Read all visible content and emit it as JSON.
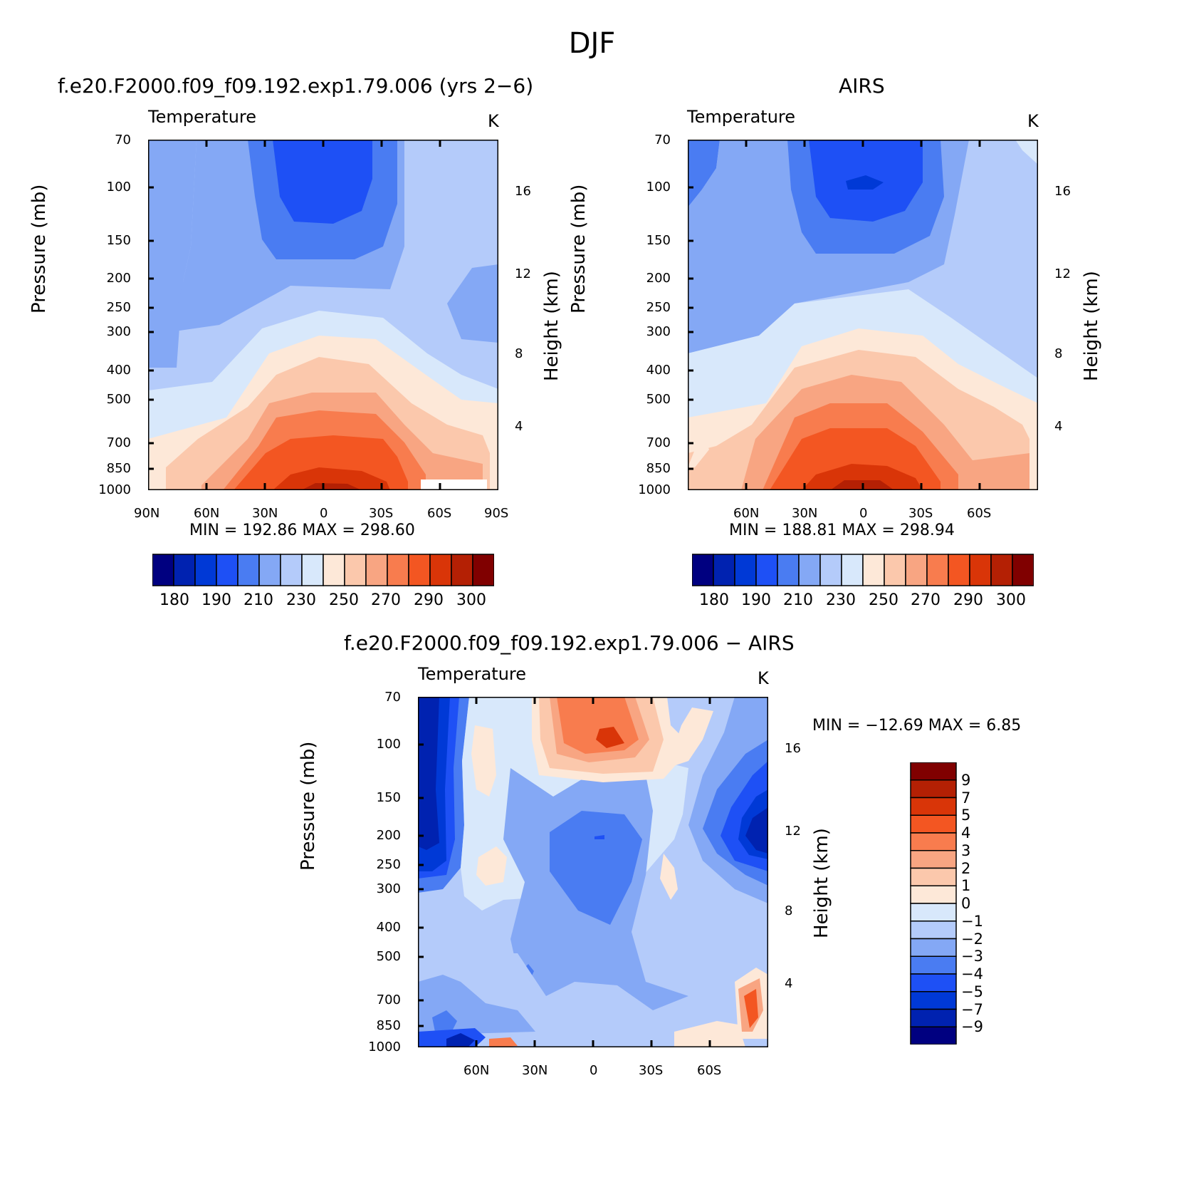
{
  "title": "DJF",
  "panels": [
    {
      "id": "model",
      "title": "f.e20.F2000.f09_f09.192.exp1.79.006 (yrs 2−6)",
      "subtitle": "Temperature",
      "units": "K",
      "min_max": "MIN  =  192.86    MAX  =  298.60"
    },
    {
      "id": "airs",
      "title": "AIRS",
      "subtitle": "Temperature",
      "units": "K",
      "min_max": "MIN  =  188.81    MAX  =  298.94"
    },
    {
      "id": "diff",
      "title": "f.e20.F2000.f09_f09.192.exp1.79.006  −  AIRS",
      "subtitle": "Temperature",
      "units": "K",
      "min_max": "MIN  =  −12.69    MAX  =      6.85"
    }
  ],
  "axes": {
    "y_title": "Pressure  (mb)",
    "y2_title": "Height  (km)",
    "pressure_ticks": [
      "70",
      "100",
      "150",
      "200",
      "250",
      "300",
      "300",
      "400",
      "500",
      "700",
      "850",
      "1000"
    ],
    "height_ticks": [
      "16",
      "12",
      "8",
      "4"
    ],
    "lat_ticks_full": [
      "90N",
      "60N",
      "30N",
      "0",
      "30S",
      "60S",
      "90S"
    ],
    "lat_ticks_inner": [
      "60N",
      "30N",
      "0",
      "30S",
      "60S"
    ]
  },
  "colorbar_abs": {
    "labels": [
      "180",
      "190",
      "210",
      "230",
      "250",
      "270",
      "290",
      "300"
    ],
    "colors": [
      "#000080",
      "#0022b0",
      "#0039d6",
      "#1e50f5",
      "#4a7cf2",
      "#84a8f5",
      "#b4cbfa",
      "#d8e8fb",
      "#fde8d8",
      "#fbc8ac",
      "#f8a582",
      "#f87c4e",
      "#f35622",
      "#d93508",
      "#b42004",
      "#800000"
    ]
  },
  "colorbar_diff": {
    "labels": [
      "9",
      "7",
      "5",
      "4",
      "3",
      "2",
      "1",
      "0",
      "−1",
      "−2",
      "−3",
      "−4",
      "−5",
      "−7",
      "−9"
    ],
    "colors": [
      "#800000",
      "#b42004",
      "#d93508",
      "#f35622",
      "#f87c4e",
      "#f8a582",
      "#fbc8ac",
      "#fde8d8",
      "#d8e8fb",
      "#b4cbfa",
      "#84a8f5",
      "#4a7cf2",
      "#1e50f5",
      "#0039d6",
      "#0022b0",
      "#000080"
    ]
  },
  "chart_data": [
    {
      "type": "heatmap",
      "title": "f.e20.F2000.f09_f09.192.exp1.79.006 (yrs 2−6)",
      "subtitle": "Temperature",
      "units": "K",
      "x": [
        "90N",
        "60N",
        "30N",
        "0",
        "30S",
        "60S",
        "90S"
      ],
      "y_pressure_mb": [
        70,
        100,
        150,
        200,
        250,
        300,
        400,
        500,
        700,
        850,
        1000
      ],
      "y2_height_km": [
        4,
        8,
        12,
        16
      ],
      "min": 192.86,
      "max": 298.6,
      "colorbar_levels": [
        180,
        190,
        210,
        230,
        250,
        270,
        290,
        300
      ]
    },
    {
      "type": "heatmap",
      "title": "AIRS",
      "subtitle": "Temperature",
      "units": "K",
      "x": [
        "60N",
        "30N",
        "0",
        "30S",
        "60S"
      ],
      "y_pressure_mb": [
        70,
        100,
        150,
        200,
        250,
        300,
        400,
        500,
        700,
        850,
        1000
      ],
      "y2_height_km": [
        4,
        8,
        12,
        16
      ],
      "min": 188.81,
      "max": 298.94,
      "colorbar_levels": [
        180,
        190,
        210,
        230,
        250,
        270,
        290,
        300
      ]
    },
    {
      "type": "heatmap",
      "title": "f.e20.F2000.f09_f09.192.exp1.79.006 − AIRS",
      "subtitle": "Temperature",
      "units": "K",
      "x": [
        "60N",
        "30N",
        "0",
        "30S",
        "60S"
      ],
      "y_pressure_mb": [
        70,
        100,
        150,
        200,
        250,
        300,
        400,
        500,
        700,
        850,
        1000
      ],
      "y2_height_km": [
        4,
        8,
        12,
        16
      ],
      "min": -12.69,
      "max": 6.85,
      "colorbar_levels": [
        9,
        7,
        5,
        4,
        3,
        2,
        1,
        0,
        -1,
        -2,
        -3,
        -4,
        -5,
        -7,
        -9
      ]
    }
  ]
}
